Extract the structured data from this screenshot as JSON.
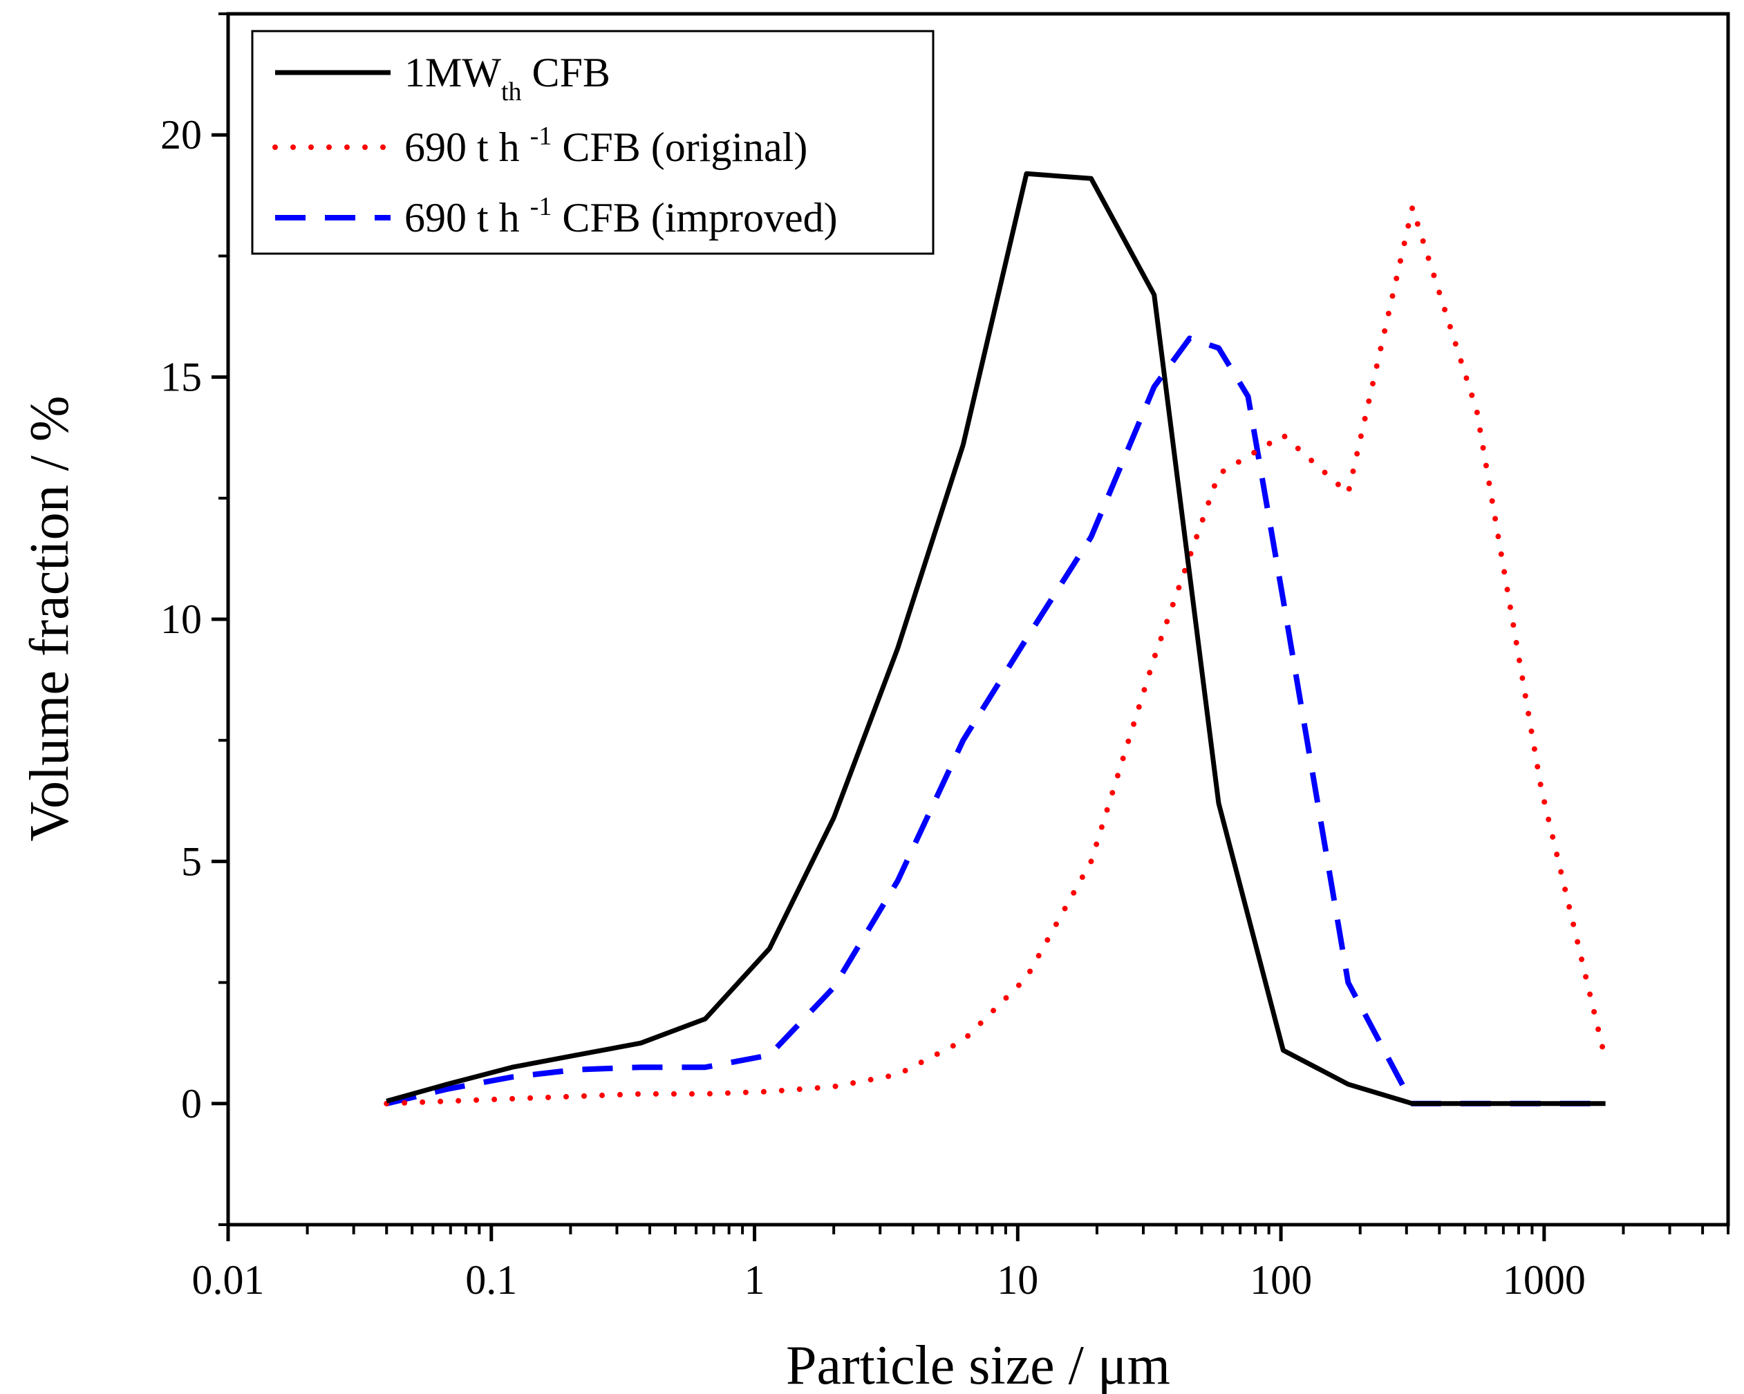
{
  "chart_data": {
    "type": "line",
    "xlabel": "Particle size / μm",
    "ylabel": "Volume fraction / %",
    "xscale": "log",
    "xlim": [
      0.01,
      5000
    ],
    "ylim": [
      -2.5,
      22.5
    ],
    "xticks": [
      0.01,
      0.1,
      1,
      10,
      100,
      1000
    ],
    "xtick_labels": [
      "0.01",
      "0.1",
      "1",
      "10",
      "100",
      "1000"
    ],
    "yticks": [
      0,
      5,
      10,
      15,
      20
    ],
    "ytick_labels": [
      "0",
      "5",
      "10",
      "15",
      "20"
    ],
    "legend_position": "top-left",
    "series": [
      {
        "name": "1MWth CFB",
        "legend_main": "1MW",
        "legend_sub": "th",
        "legend_rest": " CFB",
        "color": "#000000",
        "style": "solid",
        "x": [
          0.04,
          0.068,
          0.12,
          0.21,
          0.37,
          0.65,
          1.14,
          2.0,
          3.5,
          6.2,
          10.8,
          19,
          33,
          58,
          102,
          180,
          316,
          555,
          975,
          1710
        ],
        "y": [
          0.05,
          0.4,
          0.75,
          1.0,
          1.25,
          1.75,
          3.2,
          5.9,
          9.4,
          13.6,
          19.2,
          19.1,
          16.7,
          6.2,
          1.1,
          0.4,
          0.0,
          0.0,
          0.0,
          0.0
        ]
      },
      {
        "name": "690 t h -1 CFB (original)",
        "legend_main": "690 t h ",
        "legend_sup": "-1",
        "legend_rest": " CFB (original)",
        "color": "#ff0000",
        "style": "dotted",
        "x": [
          0.04,
          0.068,
          0.12,
          0.21,
          0.37,
          0.65,
          1.14,
          2.0,
          3.5,
          6.2,
          10.8,
          19,
          33,
          58,
          102,
          180,
          316,
          555,
          975,
          1710
        ],
        "y": [
          0.0,
          0.05,
          0.1,
          0.15,
          0.2,
          0.2,
          0.25,
          0.35,
          0.6,
          1.3,
          2.6,
          5.0,
          9.2,
          13.0,
          13.8,
          12.6,
          18.5,
          14.3,
          6.5,
          0.9
        ]
      },
      {
        "name": "690 t h -1 CFB (improved)",
        "legend_main": "690 t h ",
        "legend_sup": "-1",
        "legend_rest": " CFB (improved)",
        "color": "#0000ff",
        "style": "dashed",
        "x": [
          0.04,
          0.068,
          0.12,
          0.21,
          0.37,
          0.65,
          1.14,
          2.0,
          3.5,
          6.2,
          10.8,
          19,
          33,
          45,
          58,
          75,
          102,
          180,
          316,
          555,
          975,
          1710
        ],
        "y": [
          0.0,
          0.3,
          0.55,
          0.7,
          0.75,
          0.75,
          1.0,
          2.4,
          4.6,
          7.5,
          9.6,
          11.7,
          14.8,
          15.8,
          15.6,
          14.6,
          10.4,
          2.5,
          0.0,
          0.0,
          0.0,
          0.0
        ]
      }
    ]
  }
}
